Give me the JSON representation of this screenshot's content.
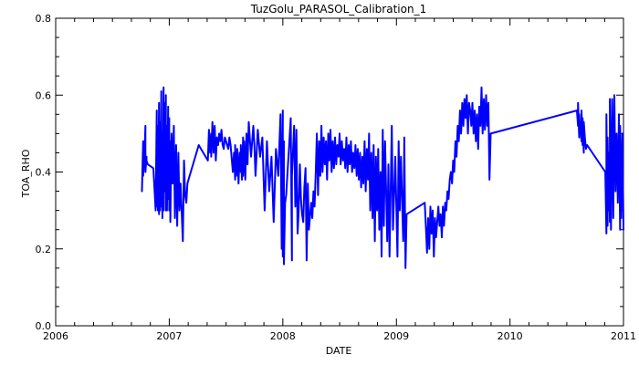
{
  "chart_data": {
    "type": "line",
    "title": "TuzGolu_PARASOL_Calibration_1",
    "xlabel": "DATE",
    "ylabel": "TOA_RHO",
    "xlim": [
      2006.0,
      2011.0
    ],
    "ylim": [
      0.0,
      0.8
    ],
    "x_ticks": [
      "2006",
      "2007",
      "2008",
      "2009",
      "2010",
      "2011"
    ],
    "y_ticks": [
      "0.0",
      "0.2",
      "0.4",
      "0.6",
      "0.8"
    ],
    "x_minor_step": 0.1667,
    "y_minor_step": 0.05,
    "grid": false,
    "line_color": "#0000ff",
    "series": [
      {
        "x": [
          2006.76,
          2006.77,
          2006.77,
          2006.78,
          2006.78,
          2006.79,
          2006.79,
          2006.8,
          2006.8,
          2006.81,
          2006.86,
          2006.88,
          2006.89,
          2006.89,
          2006.9,
          2006.9,
          2006.91,
          2006.91,
          2006.92,
          2006.92,
          2006.93,
          2006.93,
          2006.94,
          2006.94,
          2006.95,
          2006.95,
          2006.96,
          2006.96,
          2006.97,
          2006.97,
          2006.98,
          2006.98,
          2006.99,
          2006.99,
          2007.0,
          2007.0,
          2007.01,
          2007.01,
          2007.02,
          2007.03,
          2007.04,
          2007.05,
          2007.06,
          2007.07,
          2007.08,
          2007.09,
          2007.1,
          2007.12,
          2007.13,
          2007.14,
          2007.15,
          2007.16,
          2007.17,
          2007.26,
          2007.34,
          2007.35,
          2007.36,
          2007.37,
          2007.37,
          2007.38,
          2007.39,
          2007.4,
          2007.41,
          2007.42,
          2007.43,
          2007.44,
          2007.45,
          2007.46,
          2007.47,
          2007.48,
          2007.49,
          2007.5,
          2007.51,
          2007.52,
          2007.53,
          2007.54,
          2007.56,
          2007.57,
          2007.58,
          2007.58,
          2007.59,
          2007.6,
          2007.61,
          2007.62,
          2007.63,
          2007.63,
          2007.64,
          2007.65,
          2007.65,
          2007.66,
          2007.67,
          2007.68,
          2007.69,
          2007.7,
          2007.72,
          2007.74,
          2007.75,
          2007.76,
          2007.78,
          2007.8,
          2007.82,
          2007.84,
          2007.86,
          2007.88,
          2007.9,
          2007.92,
          2007.94,
          2007.96,
          2007.98,
          2007.99,
          2008.0,
          2008.0,
          2008.01,
          2008.01,
          2008.02,
          2008.03,
          2008.07,
          2008.08,
          2008.08,
          2008.1,
          2008.11,
          2008.12,
          2008.13,
          2008.14,
          2008.15,
          2008.16,
          2008.17,
          2008.18,
          2008.19,
          2008.2,
          2008.21,
          2008.22,
          2008.23,
          2008.25,
          2008.26,
          2008.27,
          2008.28,
          2008.29,
          2008.3,
          2008.31,
          2008.32,
          2008.33,
          2008.34,
          2008.35,
          2008.36,
          2008.37,
          2008.38,
          2008.39,
          2008.4,
          2008.41,
          2008.42,
          2008.43,
          2008.44,
          2008.45,
          2008.46,
          2008.47,
          2008.48,
          2008.49,
          2008.5,
          2008.51,
          2008.52,
          2008.53,
          2008.54,
          2008.55,
          2008.56,
          2008.57,
          2008.58,
          2008.59,
          2008.6,
          2008.61,
          2008.62,
          2008.63,
          2008.64,
          2008.65,
          2008.66,
          2008.67,
          2008.68,
          2008.69,
          2008.7,
          2008.71,
          2008.72,
          2008.73,
          2008.74,
          2008.75,
          2008.76,
          2008.77,
          2008.78,
          2008.79,
          2008.8,
          2008.81,
          2008.82,
          2008.83,
          2008.84,
          2008.85,
          2008.86,
          2008.87,
          2008.88,
          2008.89,
          2008.9,
          2008.92,
          2008.93,
          2008.94,
          2008.96,
          2008.97,
          2008.99,
          2009.01,
          2009.02,
          2009.03,
          2009.04,
          2009.06,
          2009.07,
          2009.08,
          2009.09,
          2009.25,
          2009.26,
          2009.27,
          2009.28,
          2009.29,
          2009.3,
          2009.31,
          2009.32,
          2009.33,
          2009.34,
          2009.35,
          2009.37,
          2009.38,
          2009.39,
          2009.4,
          2009.41,
          2009.42,
          2009.43,
          2009.44,
          2009.45,
          2009.46,
          2009.47,
          2009.48,
          2009.49,
          2009.5,
          2009.51,
          2009.52,
          2009.53,
          2009.54,
          2009.55,
          2009.56,
          2009.57,
          2009.58,
          2009.59,
          2009.6,
          2009.61,
          2009.62,
          2009.63,
          2009.64,
          2009.65,
          2009.66,
          2009.67,
          2009.68,
          2009.69,
          2009.7,
          2009.71,
          2009.72,
          2009.73,
          2009.74,
          2009.75,
          2009.76,
          2009.77,
          2009.78,
          2009.79,
          2009.8,
          2009.81,
          2009.82,
          2009.83,
          2010.59,
          2010.6,
          2010.6,
          2010.61,
          2010.61,
          2010.62,
          2010.62,
          2010.63,
          2010.63,
          2010.64,
          2010.64,
          2010.65,
          2010.65,
          2010.66,
          2010.67,
          2010.68,
          2010.84,
          2010.85,
          2010.85,
          2010.86,
          2010.86,
          2010.87,
          2010.87,
          2010.88,
          2010.88,
          2010.89,
          2010.9,
          2010.91,
          2010.92,
          2010.93,
          2010.94,
          2010.95,
          2010.96,
          2010.97,
          2010.97,
          2010.98,
          2010.98,
          2010.99,
          2011.0
        ],
        "y": [
          0.35,
          0.48,
          0.39,
          0.44,
          0.42,
          0.52,
          0.4,
          0.44,
          0.43,
          0.42,
          0.41,
          0.3,
          0.56,
          0.31,
          0.52,
          0.3,
          0.58,
          0.29,
          0.53,
          0.3,
          0.61,
          0.31,
          0.5,
          0.28,
          0.62,
          0.3,
          0.58,
          0.35,
          0.6,
          0.3,
          0.52,
          0.3,
          0.57,
          0.33,
          0.54,
          0.3,
          0.48,
          0.27,
          0.5,
          0.37,
          0.52,
          0.28,
          0.47,
          0.26,
          0.45,
          0.3,
          0.37,
          0.22,
          0.43,
          0.34,
          0.32,
          0.37,
          0.38,
          0.47,
          0.43,
          0.51,
          0.45,
          0.5,
          0.44,
          0.53,
          0.45,
          0.52,
          0.43,
          0.49,
          0.47,
          0.5,
          0.48,
          0.51,
          0.47,
          0.46,
          0.49,
          0.48,
          0.47,
          0.46,
          0.49,
          0.47,
          0.4,
          0.45,
          0.38,
          0.47,
          0.39,
          0.46,
          0.37,
          0.45,
          0.4,
          0.47,
          0.38,
          0.49,
          0.39,
          0.48,
          0.38,
          0.5,
          0.42,
          0.53,
          0.44,
          0.52,
          0.47,
          0.39,
          0.51,
          0.44,
          0.49,
          0.3,
          0.48,
          0.35,
          0.44,
          0.27,
          0.46,
          0.39,
          0.55,
          0.2,
          0.56,
          0.18,
          0.48,
          0.16,
          0.32,
          0.34,
          0.54,
          0.17,
          0.39,
          0.52,
          0.31,
          0.51,
          0.24,
          0.3,
          0.42,
          0.33,
          0.29,
          0.27,
          0.36,
          0.41,
          0.17,
          0.37,
          0.25,
          0.32,
          0.28,
          0.35,
          0.31,
          0.4,
          0.5,
          0.34,
          0.48,
          0.39,
          0.52,
          0.4,
          0.49,
          0.42,
          0.48,
          0.38,
          0.5,
          0.43,
          0.51,
          0.4,
          0.48,
          0.41,
          0.49,
          0.42,
          0.47,
          0.44,
          0.5,
          0.42,
          0.48,
          0.43,
          0.46,
          0.41,
          0.49,
          0.4,
          0.47,
          0.42,
          0.48,
          0.4,
          0.45,
          0.41,
          0.47,
          0.39,
          0.46,
          0.38,
          0.45,
          0.36,
          0.44,
          0.37,
          0.48,
          0.35,
          0.46,
          0.38,
          0.5,
          0.3,
          0.45,
          0.28,
          0.47,
          0.22,
          0.44,
          0.3,
          0.46,
          0.25,
          0.4,
          0.18,
          0.51,
          0.26,
          0.48,
          0.22,
          0.42,
          0.18,
          0.52,
          0.25,
          0.44,
          0.18,
          0.48,
          0.3,
          0.44,
          0.22,
          0.49,
          0.15,
          0.29,
          0.32,
          0.26,
          0.19,
          0.28,
          0.2,
          0.31,
          0.24,
          0.3,
          0.18,
          0.28,
          0.23,
          0.31,
          0.26,
          0.29,
          0.23,
          0.31,
          0.26,
          0.32,
          0.3,
          0.35,
          0.33,
          0.38,
          0.4,
          0.37,
          0.43,
          0.4,
          0.48,
          0.44,
          0.52,
          0.48,
          0.56,
          0.5,
          0.58,
          0.52,
          0.59,
          0.54,
          0.6,
          0.5,
          0.58,
          0.56,
          0.52,
          0.58,
          0.5,
          0.56,
          0.48,
          0.55,
          0.46,
          0.57,
          0.52,
          0.62,
          0.5,
          0.59,
          0.51,
          0.6,
          0.52,
          0.58,
          0.38,
          0.5,
          0.56,
          0.52,
          0.58,
          0.49,
          0.55,
          0.5,
          0.53,
          0.48,
          0.56,
          0.47,
          0.54,
          0.45,
          0.53,
          0.49,
          0.46,
          0.47,
          0.4,
          0.24,
          0.55,
          0.26,
          0.49,
          0.3,
          0.45,
          0.27,
          0.59,
          0.25,
          0.59,
          0.28,
          0.6,
          0.35,
          0.5,
          0.32,
          0.55,
          0.25,
          0.52,
          0.36,
          0.28,
          0.5,
          0.25
        ]
      }
    ]
  }
}
